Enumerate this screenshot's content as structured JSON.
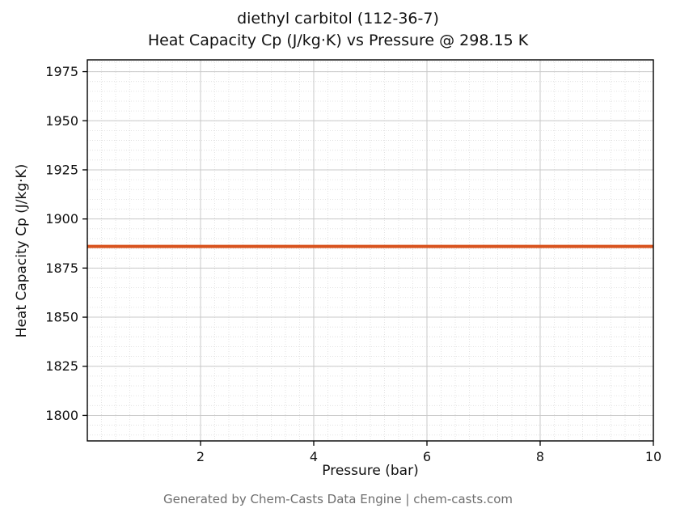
{
  "title": {
    "line1": "diethyl carbitol (112-36-7)",
    "line2": "Heat Capacity Cp (J/kg·K) vs Pressure @ 298.15 K"
  },
  "footer": "Generated by Chem-Casts Data Engine | chem-casts.com",
  "chart_data": {
    "type": "line",
    "title": "diethyl carbitol (112-36-7)\nHeat Capacity Cp (J/kg·K) vs Pressure @ 298.15 K",
    "xlabel": "Pressure (bar)",
    "ylabel": "Heat Capacity Cp (J/kg·K)",
    "xlim": [
      0,
      10
    ],
    "ylim": [
      1787,
      1981
    ],
    "x_ticks": [
      2,
      4,
      6,
      8,
      10
    ],
    "y_ticks": [
      1800,
      1825,
      1850,
      1875,
      1900,
      1925,
      1950,
      1975
    ],
    "x_minor_step": 0.25,
    "y_minor_step": 5,
    "grid": true,
    "legend": false,
    "series": [
      {
        "name": "Heat Capacity Cp",
        "x": [
          0,
          10
        ],
        "y": [
          1886,
          1886
        ],
        "color": "#d9541f",
        "linewidth": 4
      }
    ],
    "colors": {
      "major_grid": "#c8c8c8",
      "minor_grid": "#dcdcdc",
      "axes_border": "#000000",
      "tick_label": "#111111"
    }
  }
}
